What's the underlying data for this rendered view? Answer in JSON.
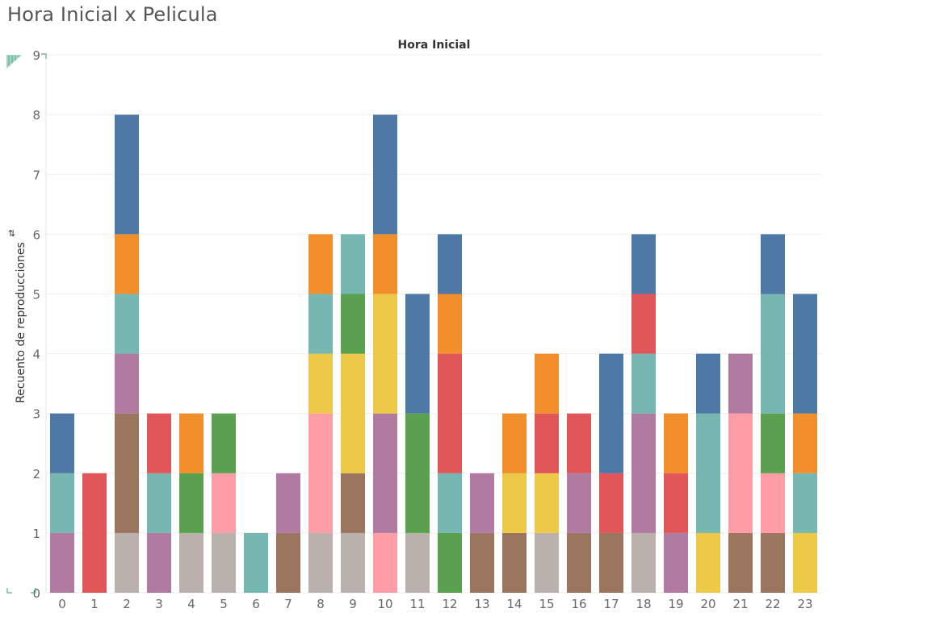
{
  "sheet_title": "Hora Inicial x Pelicula",
  "colors": {
    "blue": "#4E79A7",
    "orange": "#F28E2B",
    "red": "#E15759",
    "teal": "#76B7B2",
    "green": "#59A14F",
    "yellow": "#EDC948",
    "purple": "#B07AA1",
    "pink": "#FF9DA7",
    "brown": "#9C755F",
    "gray": "#BAB0AC"
  },
  "chart_data": {
    "type": "bar",
    "stacked": true,
    "title": "Hora Inicial",
    "xlabel": "",
    "ylabel": "Recuento de reproducciones",
    "ylim": [
      0,
      9
    ],
    "yticks": [
      0,
      1,
      2,
      3,
      4,
      5,
      6,
      7,
      8,
      9
    ],
    "grid": true,
    "categories": [
      "0",
      "1",
      "2",
      "3",
      "4",
      "5",
      "6",
      "7",
      "8",
      "9",
      "10",
      "11",
      "12",
      "13",
      "14",
      "15",
      "16",
      "17",
      "18",
      "19",
      "20",
      "21",
      "22",
      "23"
    ],
    "stacks": [
      [
        {
          "color": "purple",
          "value": 1
        },
        {
          "color": "teal",
          "value": 1
        },
        {
          "color": "blue",
          "value": 1
        }
      ],
      [
        {
          "color": "red",
          "value": 2
        }
      ],
      [
        {
          "color": "gray",
          "value": 1
        },
        {
          "color": "brown",
          "value": 2
        },
        {
          "color": "purple",
          "value": 1
        },
        {
          "color": "teal",
          "value": 1
        },
        {
          "color": "orange",
          "value": 1
        },
        {
          "color": "blue",
          "value": 2
        }
      ],
      [
        {
          "color": "purple",
          "value": 1
        },
        {
          "color": "teal",
          "value": 1
        },
        {
          "color": "red",
          "value": 1
        }
      ],
      [
        {
          "color": "gray",
          "value": 1
        },
        {
          "color": "green",
          "value": 1
        },
        {
          "color": "orange",
          "value": 1
        }
      ],
      [
        {
          "color": "gray",
          "value": 1
        },
        {
          "color": "pink",
          "value": 1
        },
        {
          "color": "green",
          "value": 1
        }
      ],
      [
        {
          "color": "teal",
          "value": 1
        }
      ],
      [
        {
          "color": "brown",
          "value": 1
        },
        {
          "color": "purple",
          "value": 1
        }
      ],
      [
        {
          "color": "gray",
          "value": 1
        },
        {
          "color": "pink",
          "value": 2
        },
        {
          "color": "yellow",
          "value": 1
        },
        {
          "color": "teal",
          "value": 1
        },
        {
          "color": "orange",
          "value": 1
        }
      ],
      [
        {
          "color": "gray",
          "value": 1
        },
        {
          "color": "brown",
          "value": 1
        },
        {
          "color": "yellow",
          "value": 2
        },
        {
          "color": "green",
          "value": 1
        },
        {
          "color": "teal",
          "value": 1
        }
      ],
      [
        {
          "color": "pink",
          "value": 1
        },
        {
          "color": "purple",
          "value": 2
        },
        {
          "color": "yellow",
          "value": 2
        },
        {
          "color": "orange",
          "value": 1
        },
        {
          "color": "blue",
          "value": 2
        }
      ],
      [
        {
          "color": "gray",
          "value": 1
        },
        {
          "color": "green",
          "value": 2
        },
        {
          "color": "blue",
          "value": 2
        }
      ],
      [
        {
          "color": "green",
          "value": 1
        },
        {
          "color": "teal",
          "value": 1
        },
        {
          "color": "red",
          "value": 2
        },
        {
          "color": "orange",
          "value": 1
        },
        {
          "color": "blue",
          "value": 1
        }
      ],
      [
        {
          "color": "brown",
          "value": 1
        },
        {
          "color": "purple",
          "value": 1
        }
      ],
      [
        {
          "color": "brown",
          "value": 1
        },
        {
          "color": "yellow",
          "value": 1
        },
        {
          "color": "orange",
          "value": 1
        }
      ],
      [
        {
          "color": "gray",
          "value": 1
        },
        {
          "color": "yellow",
          "value": 1
        },
        {
          "color": "red",
          "value": 1
        },
        {
          "color": "orange",
          "value": 1
        }
      ],
      [
        {
          "color": "brown",
          "value": 1
        },
        {
          "color": "purple",
          "value": 1
        },
        {
          "color": "red",
          "value": 1
        }
      ],
      [
        {
          "color": "brown",
          "value": 1
        },
        {
          "color": "red",
          "value": 1
        },
        {
          "color": "blue",
          "value": 2
        }
      ],
      [
        {
          "color": "gray",
          "value": 1
        },
        {
          "color": "purple",
          "value": 2
        },
        {
          "color": "teal",
          "value": 1
        },
        {
          "color": "red",
          "value": 1
        },
        {
          "color": "blue",
          "value": 1
        }
      ],
      [
        {
          "color": "purple",
          "value": 1
        },
        {
          "color": "red",
          "value": 1
        },
        {
          "color": "orange",
          "value": 1
        }
      ],
      [
        {
          "color": "yellow",
          "value": 1
        },
        {
          "color": "teal",
          "value": 2
        },
        {
          "color": "blue",
          "value": 1
        }
      ],
      [
        {
          "color": "brown",
          "value": 1
        },
        {
          "color": "pink",
          "value": 2
        },
        {
          "color": "purple",
          "value": 1
        }
      ],
      [
        {
          "color": "brown",
          "value": 1
        },
        {
          "color": "pink",
          "value": 1
        },
        {
          "color": "green",
          "value": 1
        },
        {
          "color": "teal",
          "value": 2
        },
        {
          "color": "blue",
          "value": 1
        }
      ],
      [
        {
          "color": "yellow",
          "value": 1
        },
        {
          "color": "teal",
          "value": 1
        },
        {
          "color": "orange",
          "value": 1
        },
        {
          "color": "blue",
          "value": 2
        }
      ]
    ],
    "totals": [
      3,
      2,
      8,
      3,
      3,
      3,
      1,
      2,
      6,
      6,
      8,
      5,
      6,
      2,
      3,
      4,
      3,
      4,
      6,
      3,
      4,
      4,
      6,
      5
    ]
  }
}
